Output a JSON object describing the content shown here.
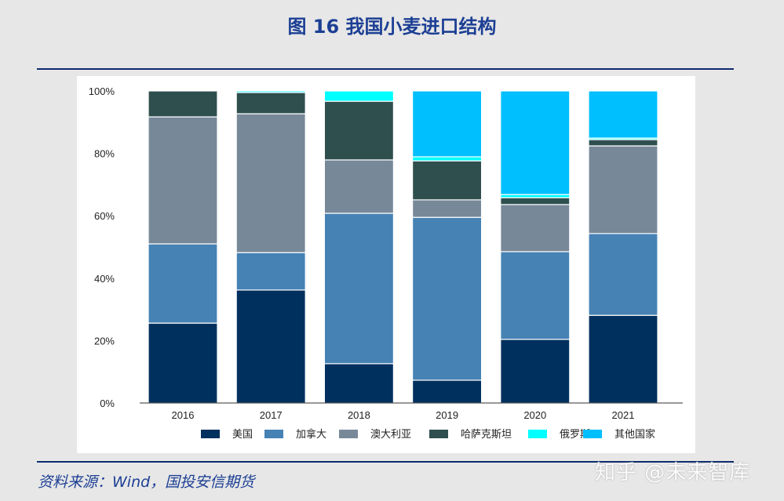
{
  "title": "图 16 我国小麦进口结构",
  "source": "资料来源：Wind，国投安信期货",
  "watermark": "知乎 @未来智库",
  "chart_data": {
    "type": "bar",
    "stacked": true,
    "title": "图 16 我国小麦进口结构",
    "categories": [
      "2016",
      "2017",
      "2018",
      "2019",
      "2020",
      "2021"
    ],
    "ylim": [
      0,
      100
    ],
    "yticks": [
      "0%",
      "20%",
      "40%",
      "60%",
      "80%",
      "100%"
    ],
    "ytick_values": [
      0,
      20,
      40,
      60,
      80,
      100
    ],
    "legend_position": "bottom-right",
    "series": [
      {
        "name": "美国",
        "color": "#00305e",
        "values": [
          25.6,
          36.2,
          12.6,
          7.3,
          20.4,
          28.1
        ]
      },
      {
        "name": "加拿大",
        "color": "#4682b4",
        "values": [
          25.4,
          12.0,
          48.2,
          52.2,
          28.1,
          26.2
        ]
      },
      {
        "name": "澳大利亚",
        "color": "#778899",
        "values": [
          40.7,
          44.5,
          17.1,
          5.6,
          15.1,
          28.1
        ]
      },
      {
        "name": "哈萨克斯坦",
        "color": "#2f4f4f",
        "values": [
          8.3,
          6.8,
          18.8,
          12.5,
          2.2,
          2.0
        ]
      },
      {
        "name": "俄罗斯",
        "color": "#00ffff",
        "values": [
          0,
          0.5,
          3.3,
          1.3,
          1.0,
          0.5
        ]
      },
      {
        "name": "其他国家",
        "color": "#00bfff",
        "values": [
          0,
          0,
          0,
          21.1,
          33.2,
          15.1
        ]
      }
    ]
  }
}
